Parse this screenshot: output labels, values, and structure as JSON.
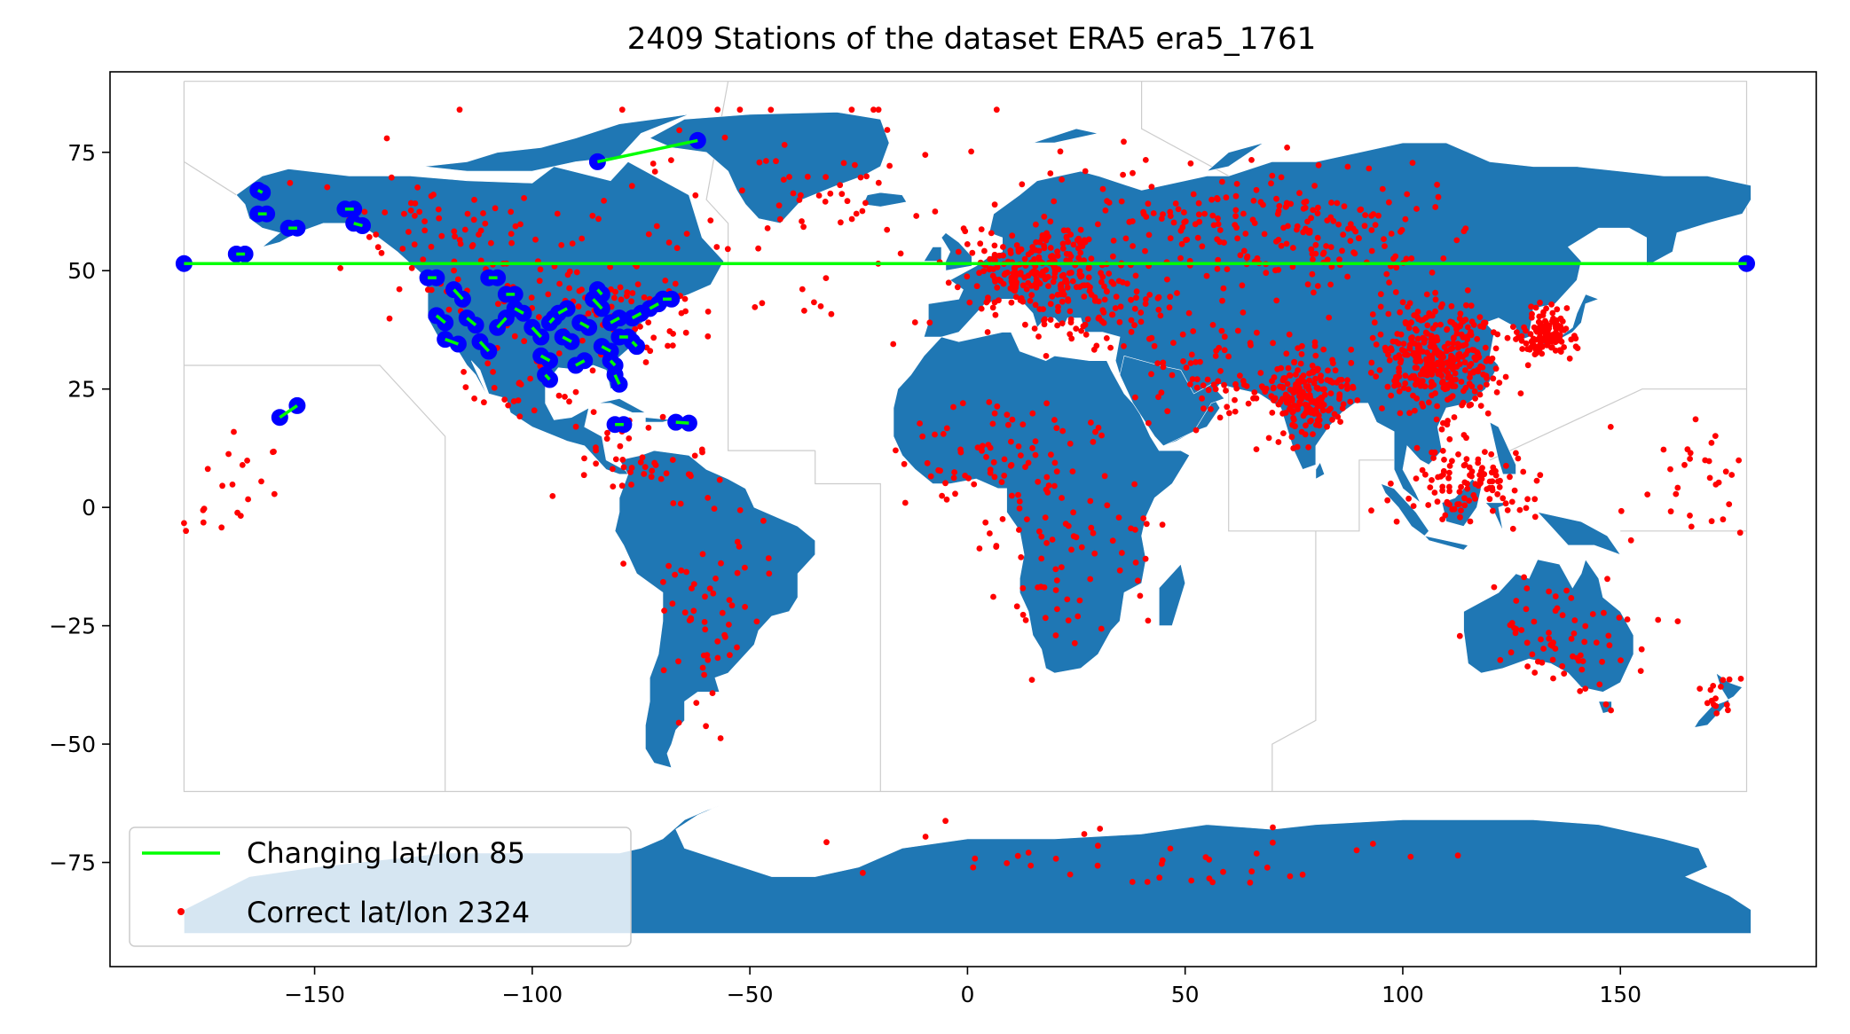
{
  "chart_data": {
    "type": "scatter",
    "title": "2409 Stations of the dataset ERA5 era5_1761",
    "xlabel": "",
    "ylabel": "",
    "xlim": [
      -197,
      195
    ],
    "ylim": [
      -97,
      92
    ],
    "xticks": [
      -150,
      -100,
      -50,
      0,
      50,
      100,
      150
    ],
    "yticks": [
      -75,
      -50,
      -25,
      0,
      25,
      50,
      75
    ],
    "xtick_labels": [
      "−150",
      "−100",
      "−50",
      "0",
      "50",
      "100",
      "150"
    ],
    "ytick_labels": [
      "−75",
      "−50",
      "−25",
      "0",
      "25",
      "50",
      "75"
    ],
    "grid": false,
    "legend": {
      "placement": "lower-left"
    },
    "colors": {
      "land": "#1f77b4",
      "changing": "#00ff00",
      "correct": "#ff0000",
      "marker_edge": "#0000ff",
      "region_border": "#cccccc"
    },
    "series": [
      {
        "name": "Changing lat/lon 85",
        "style": "line-with-blue-circle-endpoints",
        "segments": [
          [
            [
              -180,
              51.5
            ],
            [
              179,
              51.5
            ]
          ],
          [
            [
              -85,
              73
            ],
            [
              -62,
              77.5
            ]
          ],
          [
            [
              -158,
              19
            ],
            [
              -154,
              21.5
            ]
          ],
          [
            [
              -163,
              67
            ],
            [
              -162,
              66.5
            ]
          ],
          [
            [
              -163,
              62
            ],
            [
              -161,
              62
            ]
          ],
          [
            [
              -168,
              53.5
            ],
            [
              -166,
              53.5
            ]
          ],
          [
            [
              -143,
              63
            ],
            [
              -141,
              63
            ]
          ],
          [
            [
              -141,
              60
            ],
            [
              -139,
              59.5
            ]
          ],
          [
            [
              -156,
              59
            ],
            [
              -154,
              59
            ]
          ],
          [
            [
              -124,
              48.5
            ],
            [
              -122,
              48.5
            ]
          ],
          [
            [
              -110,
              48.5
            ],
            [
              -108,
              48.5
            ]
          ],
          [
            [
              -106,
              45
            ],
            [
              -104,
              45
            ]
          ],
          [
            [
              -122,
              40.5
            ],
            [
              -120,
              39
            ]
          ],
          [
            [
              -120,
              35.5
            ],
            [
              -117,
              34.5
            ]
          ],
          [
            [
              -115,
              40
            ],
            [
              -113,
              38.5
            ]
          ],
          [
            [
              -112,
              35
            ],
            [
              -110,
              33
            ]
          ],
          [
            [
              -108,
              38
            ],
            [
              -106,
              40
            ]
          ],
          [
            [
              -104,
              42
            ],
            [
              -102,
              41
            ]
          ],
          [
            [
              -100,
              38
            ],
            [
              -98,
              36
            ]
          ],
          [
            [
              -98,
              32
            ],
            [
              -96,
              31
            ]
          ],
          [
            [
              -97,
              28
            ],
            [
              -96,
              27
            ]
          ],
          [
            [
              -94,
              41
            ],
            [
              -92,
              42
            ]
          ],
          [
            [
              -93,
              36
            ],
            [
              -91,
              35
            ]
          ],
          [
            [
              -90,
              30
            ],
            [
              -88,
              31
            ]
          ],
          [
            [
              -89,
              39
            ],
            [
              -87,
              38
            ]
          ],
          [
            [
              -86,
              44
            ],
            [
              -84,
              42
            ]
          ],
          [
            [
              -84,
              34
            ],
            [
              -82,
              33
            ]
          ],
          [
            [
              -82,
              39
            ],
            [
              -80,
              40
            ]
          ],
          [
            [
              -80,
              36
            ],
            [
              -78,
              36
            ]
          ],
          [
            [
              -77,
              40
            ],
            [
              -75,
              41
            ]
          ],
          [
            [
              -73,
              42
            ],
            [
              -71,
              43
            ]
          ],
          [
            [
              -70,
              44
            ],
            [
              -68,
              44
            ]
          ],
          [
            [
              -81,
              28
            ],
            [
              -80,
              26
            ]
          ],
          [
            [
              -82,
              31
            ],
            [
              -81,
              30
            ]
          ],
          [
            [
              -77,
              35
            ],
            [
              -76,
              34
            ]
          ],
          [
            [
              -85,
              46
            ],
            [
              -84,
              45
            ]
          ],
          [
            [
              -96,
              39
            ],
            [
              -95,
              40
            ]
          ],
          [
            [
              -118,
              46
            ],
            [
              -116,
              44
            ]
          ],
          [
            [
              -81,
              17.5
            ],
            [
              -79,
              17.5
            ]
          ],
          [
            [
              -67,
              18
            ],
            [
              -64,
              17.8
            ]
          ]
        ]
      },
      {
        "name": "Correct lat/lon 2324",
        "style": "red-dots",
        "clusters": [
          {
            "center": [
              -85,
              42
            ],
            "spread": [
              30,
              10
            ],
            "count": 90
          },
          {
            "center": [
              -115,
              58
            ],
            "spread": [
              30,
              9
            ],
            "count": 70
          },
          {
            "center": [
              -100,
              25
            ],
            "spread": [
              12,
              8
            ],
            "count": 25
          },
          {
            "center": [
              -75,
              10
            ],
            "spread": [
              15,
              8
            ],
            "count": 40
          },
          {
            "center": [
              -58,
              -18
            ],
            "spread": [
              14,
              22
            ],
            "count": 60
          },
          {
            "center": [
              -35,
              68
            ],
            "spread": [
              16,
              8
            ],
            "count": 25
          },
          {
            "center": [
              15,
              50
            ],
            "spread": [
              15,
              8
            ],
            "count": 220
          },
          {
            "center": [
              30,
              42
            ],
            "spread": [
              20,
              8
            ],
            "count": 90
          },
          {
            "center": [
              5,
              12
            ],
            "spread": [
              18,
              12
            ],
            "count": 60
          },
          {
            "center": [
              22,
              -5
            ],
            "spread": [
              20,
              22
            ],
            "count": 90
          },
          {
            "center": [
              55,
              28
            ],
            "spread": [
              12,
              9
            ],
            "count": 60
          },
          {
            "center": [
              78,
              24
            ],
            "spread": [
              9,
              8
            ],
            "count": 200
          },
          {
            "center": [
              108,
              32
            ],
            "spread": [
              14,
              11
            ],
            "count": 360
          },
          {
            "center": [
              133,
              36
            ],
            "spread": [
              6,
              5
            ],
            "count": 120
          },
          {
            "center": [
              70,
              58
            ],
            "spread": [
              40,
              12
            ],
            "count": 230
          },
          {
            "center": [
              115,
              5
            ],
            "spread": [
              15,
              8
            ],
            "count": 110
          },
          {
            "center": [
              138,
              -28
            ],
            "spread": [
              17,
              11
            ],
            "count": 70
          },
          {
            "center": [
              172,
              -40
            ],
            "spread": [
              6,
              5
            ],
            "count": 15
          },
          {
            "center": [
              -170,
              5
            ],
            "spread": [
              12,
              18
            ],
            "count": 20
          },
          {
            "center": [
              165,
              5
            ],
            "spread": [
              15,
              12
            ],
            "count": 30
          },
          {
            "center": [
              40,
              -75
            ],
            "spread": [
              80,
              8
            ],
            "count": 40
          },
          {
            "center": [
              -40,
              60
            ],
            "spread": [
              80,
              30
            ],
            "count": 80
          }
        ]
      }
    ]
  }
}
